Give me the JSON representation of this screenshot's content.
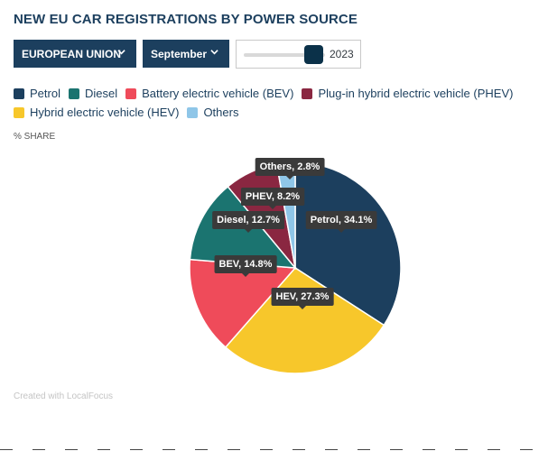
{
  "title": "NEW EU CAR REGISTRATIONS BY POWER SOURCE",
  "controls": {
    "region_label": "EUROPEAN UNION",
    "month_label": "September",
    "year_value": "2023"
  },
  "share_label": "% SHARE",
  "credit": "Created with LocalFocus",
  "chart_data": {
    "type": "pie",
    "title": "NEW EU CAR REGISTRATIONS BY POWER SOURCE",
    "unit": "% SHARE",
    "start_angle_deg": 0,
    "slices": [
      {
        "name": "Petrol",
        "legend": "Petrol",
        "label": "Petrol, 34.1%",
        "value": 34.1,
        "color": "#1c3f5e"
      },
      {
        "name": "HEV",
        "legend": "Hybrid electric vehicle (HEV)",
        "label": "HEV, 27.3%",
        "value": 27.3,
        "color": "#f7c72b"
      },
      {
        "name": "BEV",
        "legend": "Battery electric vehicle (BEV)",
        "label": "BEV, 14.8%",
        "value": 14.8,
        "color": "#ef4b5a"
      },
      {
        "name": "Diesel",
        "legend": "Diesel",
        "label": "Diesel, 12.7%",
        "value": 12.7,
        "color": "#1b7470"
      },
      {
        "name": "PHEV",
        "legend": "Plug-in hybrid electric vehicle (PHEV)",
        "label": "PHEV, 8.2%",
        "value": 8.2,
        "color": "#8a2741"
      },
      {
        "name": "Others",
        "legend": "Others",
        "label": "Others, 2.8%",
        "value": 2.8,
        "color": "#8fc6e8"
      }
    ]
  }
}
